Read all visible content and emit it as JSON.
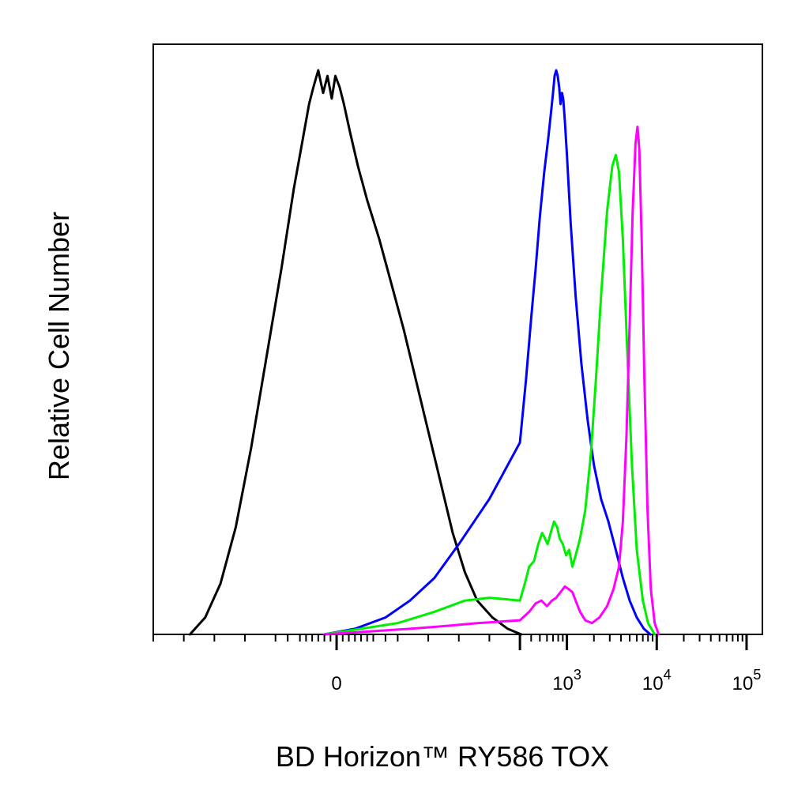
{
  "chart_data": {
    "type": "line",
    "title": "",
    "xlabel": "BD Horizon™ RY586 TOX",
    "ylabel": "Relative Cell Number",
    "x_scale": "biexponential",
    "xlim": [
      -300,
      150000
    ],
    "ylim": [
      0,
      100
    ],
    "grid": false,
    "legend": "none",
    "x_ticks": [
      {
        "value": 0,
        "base": "0",
        "exp": ""
      },
      {
        "value": 1000,
        "base": "10",
        "exp": "3"
      },
      {
        "value": 10000,
        "base": "10",
        "exp": "4"
      },
      {
        "value": 100000,
        "base": "10",
        "exp": "5"
      }
    ],
    "series": [
      {
        "color": "#000000",
        "points": [
          [
            -240,
            0
          ],
          [
            -215,
            3
          ],
          [
            -190,
            9
          ],
          [
            -165,
            19
          ],
          [
            -140,
            33
          ],
          [
            -115,
            49
          ],
          [
            -90,
            65
          ],
          [
            -70,
            79
          ],
          [
            -55,
            88
          ],
          [
            -45,
            94
          ],
          [
            -38,
            97
          ],
          [
            -30,
            100
          ],
          [
            -22,
            96
          ],
          [
            -15,
            99
          ],
          [
            -8,
            95
          ],
          [
            -2,
            99
          ],
          [
            5,
            97
          ],
          [
            12,
            94
          ],
          [
            22,
            89
          ],
          [
            35,
            83
          ],
          [
            50,
            77
          ],
          [
            70,
            70
          ],
          [
            90,
            62
          ],
          [
            110,
            54
          ],
          [
            130,
            45
          ],
          [
            150,
            36
          ],
          [
            170,
            27
          ],
          [
            190,
            18
          ],
          [
            210,
            11
          ],
          [
            230,
            6
          ],
          [
            255,
            3
          ],
          [
            280,
            1
          ],
          [
            310,
            0
          ]
        ]
      },
      {
        "color": "#0000ff",
        "points": [
          [
            -20,
            0
          ],
          [
            30,
            1
          ],
          [
            80,
            3
          ],
          [
            120,
            6
          ],
          [
            160,
            10
          ],
          [
            200,
            16
          ],
          [
            250,
            24
          ],
          [
            300,
            34
          ],
          [
            350,
            45
          ],
          [
            400,
            56
          ],
          [
            450,
            65
          ],
          [
            500,
            74
          ],
          [
            560,
            82
          ],
          [
            620,
            88
          ],
          [
            670,
            93
          ],
          [
            700,
            96
          ],
          [
            730,
            99
          ],
          [
            760,
            100
          ],
          [
            790,
            99
          ],
          [
            820,
            97
          ],
          [
            850,
            94
          ],
          [
            880,
            96
          ],
          [
            910,
            95
          ],
          [
            950,
            91
          ],
          [
            1000,
            85
          ],
          [
            1100,
            73
          ],
          [
            1250,
            60
          ],
          [
            1450,
            48
          ],
          [
            1700,
            38
          ],
          [
            2000,
            30
          ],
          [
            2400,
            24
          ],
          [
            2900,
            20
          ],
          [
            3500,
            15
          ],
          [
            4200,
            10
          ],
          [
            5000,
            6
          ],
          [
            6000,
            3
          ],
          [
            7200,
            1
          ],
          [
            8500,
            0
          ]
        ]
      },
      {
        "color": "#00ee00",
        "points": [
          [
            -20,
            0
          ],
          [
            100,
            2
          ],
          [
            160,
            4
          ],
          [
            210,
            6
          ],
          [
            250,
            6.5
          ],
          [
            300,
            6
          ],
          [
            340,
            9
          ],
          [
            380,
            12
          ],
          [
            430,
            13
          ],
          [
            480,
            16
          ],
          [
            530,
            18
          ],
          [
            570,
            17
          ],
          [
            610,
            16
          ],
          [
            660,
            18
          ],
          [
            720,
            20
          ],
          [
            780,
            19
          ],
          [
            830,
            17
          ],
          [
            900,
            16
          ],
          [
            980,
            14
          ],
          [
            1060,
            15
          ],
          [
            1150,
            12
          ],
          [
            1250,
            14
          ],
          [
            1400,
            17
          ],
          [
            1600,
            22
          ],
          [
            1850,
            32
          ],
          [
            2100,
            45
          ],
          [
            2400,
            60
          ],
          [
            2800,
            75
          ],
          [
            3200,
            83
          ],
          [
            3500,
            85
          ],
          [
            3800,
            82
          ],
          [
            4200,
            70
          ],
          [
            4700,
            50
          ],
          [
            5300,
            30
          ],
          [
            6000,
            15
          ],
          [
            7000,
            6
          ],
          [
            8000,
            2
          ],
          [
            9500,
            0
          ]
        ]
      },
      {
        "color": "#ff00ff",
        "points": [
          [
            -20,
            0
          ],
          [
            120,
            1
          ],
          [
            180,
            1.5
          ],
          [
            230,
            2
          ],
          [
            300,
            2.5
          ],
          [
            380,
            4
          ],
          [
            450,
            5.5
          ],
          [
            520,
            6
          ],
          [
            600,
            5
          ],
          [
            680,
            6
          ],
          [
            760,
            6.5
          ],
          [
            850,
            7.5
          ],
          [
            950,
            8.5
          ],
          [
            1050,
            8
          ],
          [
            1150,
            7.5
          ],
          [
            1250,
            6
          ],
          [
            1400,
            4
          ],
          [
            1600,
            2.5
          ],
          [
            1900,
            2
          ],
          [
            2300,
            3
          ],
          [
            2800,
            5
          ],
          [
            3300,
            8
          ],
          [
            3800,
            12
          ],
          [
            4200,
            20
          ],
          [
            4600,
            35
          ],
          [
            5000,
            55
          ],
          [
            5400,
            75
          ],
          [
            5800,
            87
          ],
          [
            6100,
            90
          ],
          [
            6400,
            86
          ],
          [
            6800,
            70
          ],
          [
            7300,
            45
          ],
          [
            7900,
            22
          ],
          [
            8600,
            8
          ],
          [
            9500,
            2
          ],
          [
            10500,
            0
          ]
        ]
      }
    ]
  }
}
